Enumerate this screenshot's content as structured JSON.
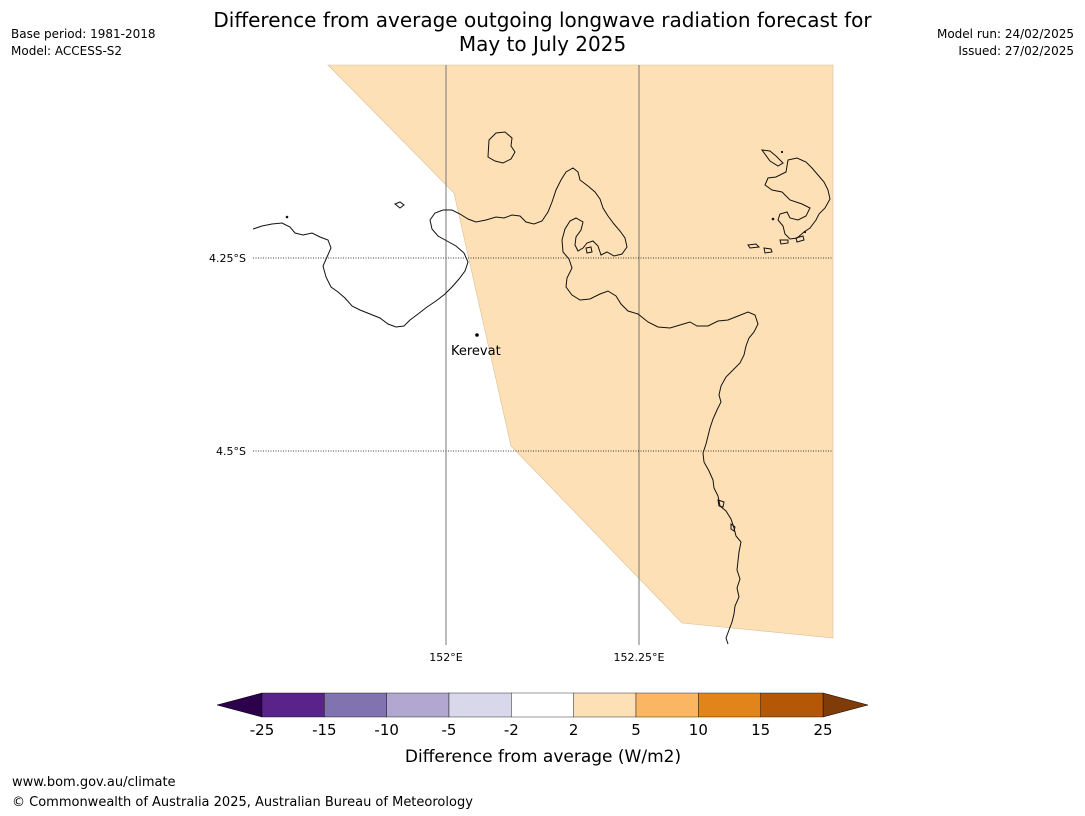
{
  "title_line1": "Difference from average outgoing longwave radiation forecast for",
  "title_line2": "May to July 2025",
  "base_period": "Base period: 1981-2018",
  "model": "Model: ACCESS-S2",
  "model_run": "Model run: 24/02/2025",
  "issued": "Issued: 27/02/2025",
  "map": {
    "longitude_labels": [
      "152°E",
      "152.25°E"
    ],
    "latitude_labels": [
      "4.25°S",
      "4.5°S"
    ],
    "places": [
      {
        "name": "Kerevat"
      }
    ],
    "forecast_fill_color": "#fde0b6",
    "forecast_category": "2 to 5"
  },
  "colorbar": {
    "title": "Difference from average (W/m2)",
    "ticks": [
      "-25",
      "-15",
      "-10",
      "-5",
      "-2",
      "2",
      "5",
      "10",
      "15",
      "25"
    ],
    "colors": [
      "#5a2389",
      "#8172b0",
      "#b1a7d1",
      "#d9d8eb",
      "#ffffff",
      "#fde0b6",
      "#fbb663",
      "#e1841a",
      "#b45707"
    ],
    "under_color": "#2d004b",
    "over_color": "#7f3b08"
  },
  "footer_url": "www.bom.gov.au/climate",
  "footer_copyright": "© Commonwealth of Australia 2025, Australian Bureau of Meteorology"
}
